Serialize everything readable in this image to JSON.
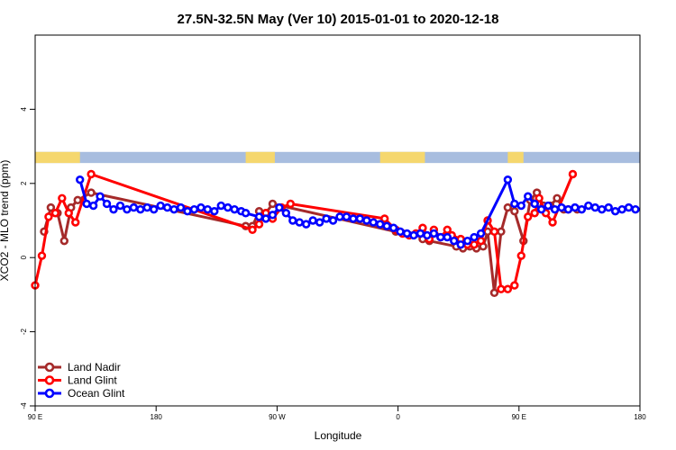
{
  "chart_data": {
    "type": "line",
    "title": "27.5N-32.5N May (Ver 10)   2015-01-01 to 2020-12-18",
    "xlabel": "Longitude",
    "ylabel": "XCO2 - MLO trend (ppm)",
    "xlim": [
      -90,
      180
    ],
    "ylim": [
      -4,
      6
    ],
    "x_ticks": [
      {
        "value": -90,
        "label": "90 E"
      },
      {
        "value": -36,
        "label": "180"
      },
      {
        "value": 18,
        "label": "90 W"
      },
      {
        "value": 72,
        "label": "0"
      },
      {
        "value": 126,
        "label": "90 E"
      },
      {
        "value": 180,
        "label": "180"
      }
    ],
    "y_ticks": [
      -4,
      -2,
      0,
      2,
      4
    ],
    "grid": false,
    "legend_position": "bottom-left",
    "surface_strip": {
      "y_range": [
        2.55,
        2.85
      ],
      "ocean_color": "#a8bddf",
      "land_color": "#f5d76e",
      "land_segments": [
        [
          -90,
          -70
        ],
        [
          4,
          17
        ],
        [
          64,
          84
        ],
        [
          121,
          128
        ]
      ]
    },
    "series": [
      {
        "name": "Land Nadir",
        "color": "#a52a2a",
        "x": [
          -86,
          -83,
          -80,
          -77,
          -74,
          -71,
          -65,
          4,
          7,
          10,
          13,
          16,
          71,
          74,
          77,
          80,
          83,
          86,
          98,
          101,
          104,
          107,
          110,
          112,
          115,
          118,
          121,
          124,
          128,
          131,
          134,
          137,
          140,
          143,
          146,
          148,
          152
        ],
        "y": [
          0.7,
          1.35,
          1.2,
          0.45,
          1.35,
          1.55,
          1.75,
          0.85,
          0.85,
          1.25,
          1.2,
          1.45,
          0.7,
          0.65,
          0.6,
          0.65,
          0.5,
          0.45,
          0.3,
          0.25,
          0.3,
          0.25,
          0.3,
          0.7,
          -0.95,
          0.7,
          1.35,
          1.25,
          0.45,
          1.55,
          1.75,
          1.4,
          1.4,
          1.6,
          1.3,
          1.3,
          1.3
        ]
      },
      {
        "name": "Land Glint",
        "color": "#ff0000",
        "x": [
          -90,
          -87,
          -84,
          -81,
          -78,
          -75,
          -72,
          -65,
          7,
          10,
          13,
          16,
          20,
          24,
          66,
          71,
          74,
          77,
          80,
          83,
          86,
          88,
          91,
          94,
          96,
          100,
          103,
          106,
          109,
          112,
          115,
          118,
          121,
          124,
          127,
          130,
          133,
          135,
          138,
          141,
          150
        ],
        "y": [
          -0.75,
          0.05,
          1.1,
          1.2,
          1.6,
          1.2,
          0.95,
          2.25,
          0.75,
          0.9,
          1.2,
          1.05,
          1.35,
          1.45,
          1.05,
          0.75,
          0.65,
          0.6,
          0.65,
          0.8,
          0.5,
          0.75,
          0.55,
          0.75,
          0.6,
          0.5,
          0.35,
          0.35,
          0.45,
          1.0,
          0.7,
          -0.85,
          -0.85,
          -0.75,
          0.05,
          1.1,
          1.2,
          1.6,
          1.2,
          0.95,
          2.25
        ]
      },
      {
        "name": "Ocean Glint",
        "color": "#0000ff",
        "x": [
          -70,
          -67,
          -64,
          -61,
          -58,
          -55,
          -52,
          -49,
          -46,
          -43,
          -40,
          -37,
          -34,
          -31,
          -28,
          -25,
          -22,
          -19,
          -16,
          -13,
          -10,
          -7,
          -4,
          -1,
          2,
          4,
          10,
          13,
          16,
          19,
          22,
          25,
          28,
          31,
          34,
          37,
          40,
          43,
          46,
          49,
          52,
          55,
          58,
          61,
          64,
          67,
          70,
          73,
          76,
          79,
          82,
          85,
          88,
          91,
          94,
          97,
          100,
          103,
          106,
          109,
          121,
          124,
          127,
          130,
          133,
          136,
          139,
          142,
          145,
          148,
          151,
          154,
          157,
          160,
          163,
          166,
          169,
          172,
          175,
          178
        ],
        "y": [
          2.1,
          1.45,
          1.4,
          1.65,
          1.45,
          1.3,
          1.4,
          1.3,
          1.35,
          1.3,
          1.35,
          1.3,
          1.4,
          1.35,
          1.3,
          1.35,
          1.25,
          1.3,
          1.35,
          1.3,
          1.25,
          1.4,
          1.35,
          1.3,
          1.25,
          1.2,
          1.1,
          1.05,
          1.15,
          1.35,
          1.2,
          1.0,
          0.95,
          0.9,
          1.0,
          0.95,
          1.05,
          1.0,
          1.1,
          1.1,
          1.05,
          1.05,
          1.0,
          0.95,
          0.9,
          0.85,
          0.8,
          0.7,
          0.65,
          0.6,
          0.65,
          0.6,
          0.65,
          0.55,
          0.55,
          0.45,
          0.35,
          0.45,
          0.55,
          0.65,
          2.1,
          1.45,
          1.4,
          1.65,
          1.45,
          1.3,
          1.4,
          1.3,
          1.35,
          1.3,
          1.35,
          1.3,
          1.4,
          1.35,
          1.3,
          1.35,
          1.25,
          1.3,
          1.35,
          1.3
        ]
      }
    ]
  }
}
